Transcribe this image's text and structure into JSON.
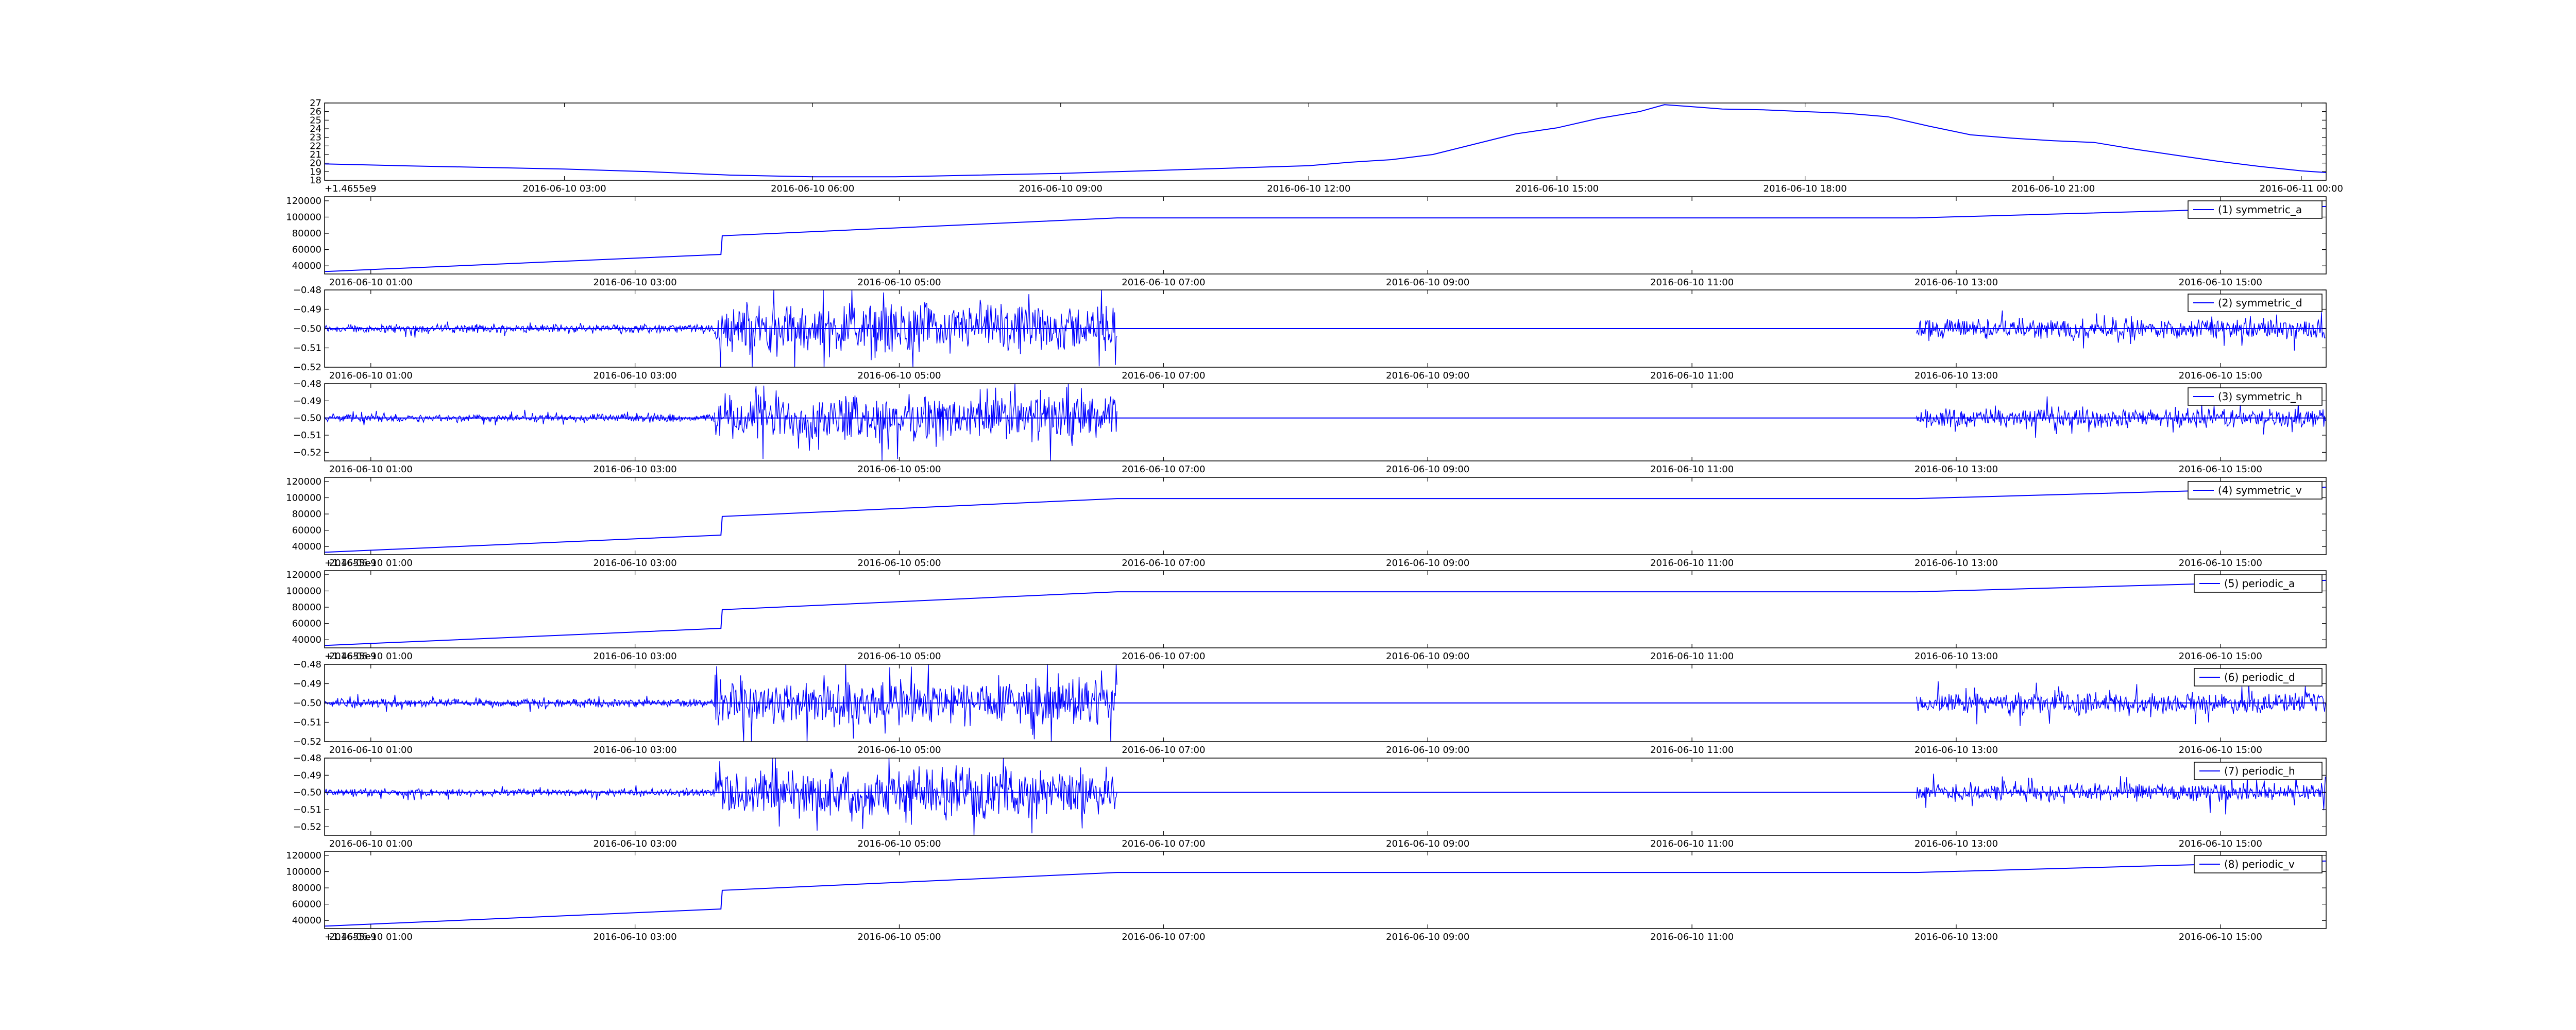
{
  "figure": {
    "offset_label": "+1.4655e9",
    "line_color": "#0000ff"
  },
  "chart_data": [
    {
      "type": "line",
      "id": "temperature",
      "x_ticks": [
        "2016-06-10 03:00",
        "2016-06-10 06:00",
        "2016-06-10 09:00",
        "2016-06-10 12:00",
        "2016-06-10 15:00",
        "2016-06-10 18:00",
        "2016-06-10 21:00",
        "2016-06-11 00:00"
      ],
      "x_tick_hours": [
        3,
        6,
        9,
        12,
        15,
        18,
        21,
        24
      ],
      "xlim_hours": [
        0.1,
        24.3
      ],
      "y_ticks": [
        "18",
        "19",
        "20",
        "21",
        "22",
        "23",
        "24",
        "25",
        "26",
        "27"
      ],
      "ylim": [
        18,
        27
      ],
      "offset_label": "+1.4655e9",
      "series": [
        {
          "x_hours": [
            0.1,
            1,
            2,
            3,
            4,
            5,
            6,
            7,
            8,
            9,
            10,
            11,
            12,
            12.5,
            13,
            13.5,
            14,
            14.5,
            15,
            15.5,
            16,
            16.3,
            16.6,
            17,
            17.5,
            18,
            18.5,
            19,
            19.5,
            20,
            20.5,
            21,
            21.5,
            22,
            22.5,
            23,
            23.5,
            24,
            24.3
          ],
          "values": [
            19.9,
            19.7,
            19.5,
            19.3,
            19.0,
            18.6,
            18.4,
            18.4,
            18.6,
            18.8,
            19.1,
            19.4,
            19.7,
            20.1,
            20.4,
            21.0,
            22.2,
            23.4,
            24.1,
            25.2,
            26.0,
            26.8,
            26.6,
            26.3,
            26.2,
            26.0,
            25.8,
            25.4,
            24.3,
            23.3,
            22.9,
            22.6,
            22.4,
            21.6,
            20.9,
            20.2,
            19.6,
            19.1,
            18.9
          ]
        }
      ]
    },
    {
      "type": "line",
      "id": "symmetric_a",
      "x_ticks": [
        "2016-06-10 01:00",
        "2016-06-10 03:00",
        "2016-06-10 05:00",
        "2016-06-10 07:00",
        "2016-06-10 09:00",
        "2016-06-10 11:00",
        "2016-06-10 13:00",
        "2016-06-10 15:00"
      ],
      "x_tick_hours": [
        1,
        3,
        5,
        7,
        9,
        11,
        13,
        15
      ],
      "xlim_hours": [
        0.65,
        15.8
      ],
      "y_ticks": [
        "40000",
        "60000",
        "80000",
        "100000",
        "120000"
      ],
      "ylim": [
        30000,
        125000
      ],
      "offset_label": "",
      "signal": "trend",
      "series": [
        {
          "name": "(1) symmetric_a",
          "x_hours": [
            0.65,
            3.65,
            3.66,
            6.65,
            12.7,
            15.8
          ],
          "values": [
            33000,
            54000,
            77000,
            99000,
            99000,
            113000
          ]
        }
      ]
    },
    {
      "type": "line",
      "id": "symmetric_d",
      "x_ticks": [
        "2016-06-10 01:00",
        "2016-06-10 03:00",
        "2016-06-10 05:00",
        "2016-06-10 07:00",
        "2016-06-10 09:00",
        "2016-06-10 11:00",
        "2016-06-10 13:00",
        "2016-06-10 15:00"
      ],
      "x_tick_hours": [
        1,
        3,
        5,
        7,
        9,
        11,
        13,
        15
      ],
      "xlim_hours": [
        0.65,
        15.8
      ],
      "y_ticks": [
        "−0.52",
        "−0.51",
        "−0.50",
        "−0.49",
        "−0.48"
      ],
      "ylim": [
        -0.52,
        -0.48
      ],
      "offset_label": "",
      "signal": "noise",
      "series": [
        {
          "name": "(2) symmetric_d",
          "baseline": -0.5,
          "segments": [
            {
              "x_hours": [
                0.65,
                3.6
              ],
              "amplitude": 0.0025
            },
            {
              "x_hours": [
                3.6,
                6.65
              ],
              "amplitude": 0.014
            },
            {
              "x_hours": [
                12.7,
                15.8
              ],
              "amplitude": 0.006
            }
          ]
        }
      ]
    },
    {
      "type": "line",
      "id": "symmetric_h",
      "x_ticks": [
        "2016-06-10 01:00",
        "2016-06-10 03:00",
        "2016-06-10 05:00",
        "2016-06-10 07:00",
        "2016-06-10 09:00",
        "2016-06-10 11:00",
        "2016-06-10 13:00",
        "2016-06-10 15:00"
      ],
      "x_tick_hours": [
        1,
        3,
        5,
        7,
        9,
        11,
        13,
        15
      ],
      "xlim_hours": [
        0.65,
        15.8
      ],
      "y_ticks": [
        "−0.52",
        "−0.51",
        "−0.50",
        "−0.49",
        "−0.48"
      ],
      "ylim": [
        -0.525,
        -0.48
      ],
      "offset_label": "",
      "signal": "noise",
      "series": [
        {
          "name": "(3) symmetric_h",
          "baseline": -0.5,
          "segments": [
            {
              "x_hours": [
                0.65,
                3.6
              ],
              "amplitude": 0.0025
            },
            {
              "x_hours": [
                3.6,
                6.65
              ],
              "amplitude": 0.015
            },
            {
              "x_hours": [
                12.7,
                15.8
              ],
              "amplitude": 0.006
            }
          ]
        }
      ]
    },
    {
      "type": "line",
      "id": "symmetric_v",
      "x_ticks": [
        "2016-06-10 01:00",
        "2016-06-10 03:00",
        "2016-06-10 05:00",
        "2016-06-10 07:00",
        "2016-06-10 09:00",
        "2016-06-10 11:00",
        "2016-06-10 13:00",
        "2016-06-10 15:00"
      ],
      "x_tick_hours": [
        1,
        3,
        5,
        7,
        9,
        11,
        13,
        15
      ],
      "xlim_hours": [
        0.65,
        15.8
      ],
      "y_ticks": [
        "40000",
        "60000",
        "80000",
        "100000",
        "120000"
      ],
      "ylim": [
        30000,
        125000
      ],
      "offset_label": "+1.4655e9",
      "signal": "trend",
      "series": [
        {
          "name": "(4) symmetric_v",
          "x_hours": [
            0.65,
            3.65,
            3.66,
            6.65,
            12.7,
            15.8
          ],
          "values": [
            33000,
            54000,
            77000,
            99000,
            99000,
            113000
          ]
        }
      ]
    },
    {
      "type": "line",
      "id": "periodic_a",
      "x_ticks": [
        "2016-06-10 01:00",
        "2016-06-10 03:00",
        "2016-06-10 05:00",
        "2016-06-10 07:00",
        "2016-06-10 09:00",
        "2016-06-10 11:00",
        "2016-06-10 13:00",
        "2016-06-10 15:00"
      ],
      "x_tick_hours": [
        1,
        3,
        5,
        7,
        9,
        11,
        13,
        15
      ],
      "xlim_hours": [
        0.65,
        15.8
      ],
      "y_ticks": [
        "40000",
        "60000",
        "80000",
        "100000",
        "120000"
      ],
      "ylim": [
        30000,
        125000
      ],
      "offset_label": "+1.4655e9",
      "signal": "trend",
      "series": [
        {
          "name": "(5) periodic_a",
          "x_hours": [
            0.65,
            3.65,
            3.66,
            6.65,
            12.7,
            15.8
          ],
          "values": [
            33000,
            54000,
            77000,
            99000,
            99000,
            113000
          ]
        }
      ]
    },
    {
      "type": "line",
      "id": "periodic_d",
      "x_ticks": [
        "2016-06-10 01:00",
        "2016-06-10 03:00",
        "2016-06-10 05:00",
        "2016-06-10 07:00",
        "2016-06-10 09:00",
        "2016-06-10 11:00",
        "2016-06-10 13:00",
        "2016-06-10 15:00"
      ],
      "x_tick_hours": [
        1,
        3,
        5,
        7,
        9,
        11,
        13,
        15
      ],
      "xlim_hours": [
        0.65,
        15.8
      ],
      "y_ticks": [
        "−0.52",
        "−0.51",
        "−0.50",
        "−0.49",
        "−0.48"
      ],
      "ylim": [
        -0.52,
        -0.48
      ],
      "offset_label": "",
      "signal": "noise",
      "series": [
        {
          "name": "(6) periodic_d",
          "baseline": -0.5,
          "segments": [
            {
              "x_hours": [
                0.65,
                3.6
              ],
              "amplitude": 0.0025
            },
            {
              "x_hours": [
                3.6,
                6.65
              ],
              "amplitude": 0.014
            },
            {
              "x_hours": [
                12.7,
                15.8
              ],
              "amplitude": 0.006
            }
          ]
        }
      ]
    },
    {
      "type": "line",
      "id": "periodic_h",
      "x_ticks": [
        "2016-06-10 01:00",
        "2016-06-10 03:00",
        "2016-06-10 05:00",
        "2016-06-10 07:00",
        "2016-06-10 09:00",
        "2016-06-10 11:00",
        "2016-06-10 13:00",
        "2016-06-10 15:00"
      ],
      "x_tick_hours": [
        1,
        3,
        5,
        7,
        9,
        11,
        13,
        15
      ],
      "xlim_hours": [
        0.65,
        15.8
      ],
      "y_ticks": [
        "−0.52",
        "−0.51",
        "−0.50",
        "−0.49",
        "−0.48"
      ],
      "ylim": [
        -0.525,
        -0.48
      ],
      "offset_label": "",
      "signal": "noise",
      "series": [
        {
          "name": "(7) periodic_h",
          "baseline": -0.5,
          "segments": [
            {
              "x_hours": [
                0.65,
                3.6
              ],
              "amplitude": 0.0025
            },
            {
              "x_hours": [
                3.6,
                6.65
              ],
              "amplitude": 0.015
            },
            {
              "x_hours": [
                12.7,
                15.8
              ],
              "amplitude": 0.006
            }
          ]
        }
      ]
    },
    {
      "type": "line",
      "id": "periodic_v",
      "x_ticks": [
        "2016-06-10 01:00",
        "2016-06-10 03:00",
        "2016-06-10 05:00",
        "2016-06-10 07:00",
        "2016-06-10 09:00",
        "2016-06-10 11:00",
        "2016-06-10 13:00",
        "2016-06-10 15:00"
      ],
      "x_tick_hours": [
        1,
        3,
        5,
        7,
        9,
        11,
        13,
        15
      ],
      "xlim_hours": [
        0.65,
        15.8
      ],
      "y_ticks": [
        "40000",
        "60000",
        "80000",
        "100000",
        "120000"
      ],
      "ylim": [
        30000,
        125000
      ],
      "offset_label": "+1.4655e9",
      "signal": "trend",
      "series": [
        {
          "name": "(8) periodic_v",
          "x_hours": [
            0.65,
            3.65,
            3.66,
            6.65,
            12.7,
            15.8
          ],
          "values": [
            33000,
            54000,
            77000,
            99000,
            99000,
            113000
          ]
        }
      ]
    }
  ]
}
